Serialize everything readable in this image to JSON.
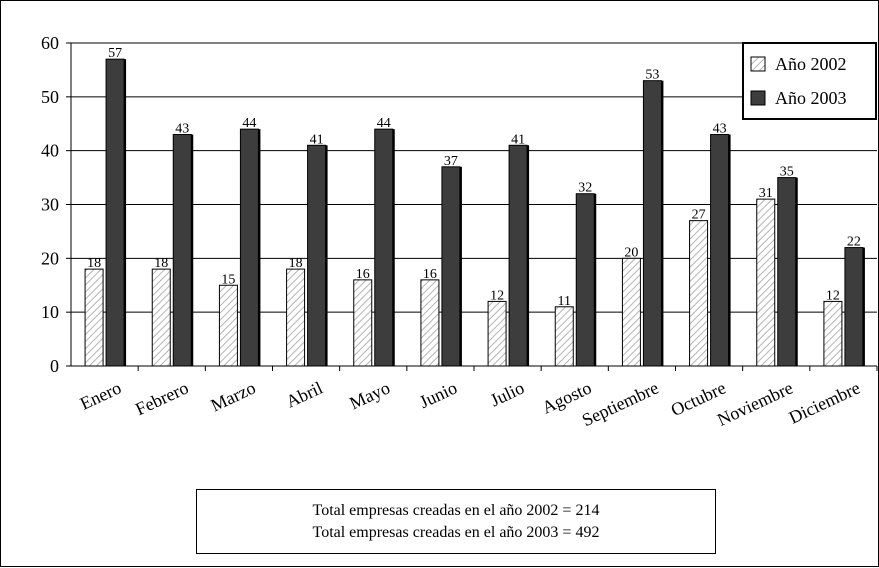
{
  "chart_data": {
    "type": "bar",
    "title": "",
    "xlabel": "",
    "ylabel": "",
    "ylim": [
      0,
      60
    ],
    "yticks": [
      0,
      10,
      20,
      30,
      40,
      50,
      60
    ],
    "grid": true,
    "legend_position": "top-right",
    "categories": [
      "Enero",
      "Febrero",
      "Marzo",
      "Abril",
      "Mayo",
      "Junio",
      "Julio",
      "Agosto",
      "Septiembre",
      "Octubre",
      "Noviembre",
      "Diciembre"
    ],
    "series": [
      {
        "name": "Año 2002",
        "values": [
          18,
          18,
          15,
          18,
          16,
          16,
          12,
          11,
          20,
          27,
          31,
          12
        ],
        "color": "#ffffff",
        "pattern": "hatched"
      },
      {
        "name": "Año 2003",
        "values": [
          57,
          43,
          44,
          41,
          44,
          37,
          41,
          32,
          53,
          43,
          35,
          22
        ],
        "color": "#3d3d3d",
        "pattern": "solid"
      }
    ]
  },
  "summary": {
    "line1": "Total empresas creadas en el año 2002 = 214",
    "line2": "Total empresas creadas en el año 2003 = 492"
  }
}
